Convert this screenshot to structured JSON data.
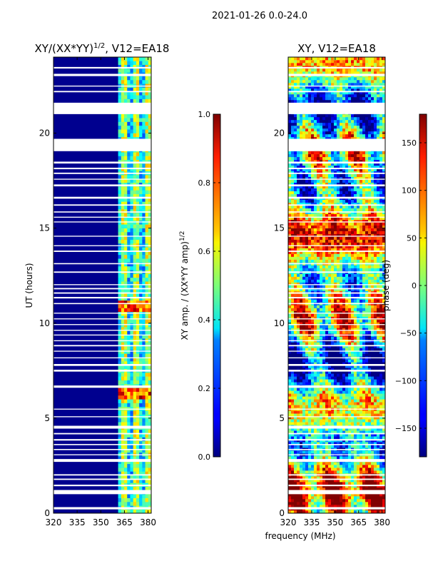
{
  "figure": {
    "suptitle": "2021-01-26 0.0-24.0",
    "xlabel": "frequency (MHz)"
  },
  "chart_data": [
    {
      "type": "heatmap",
      "title_main": "XY/(XX*YY)",
      "title_sup": "1/2",
      "title_rest": ", V12=EA18",
      "xlabel": "",
      "ylabel": "UT (hours)",
      "xlim": [
        320,
        382
      ],
      "ylim": [
        0,
        24
      ],
      "xticks": [
        "320",
        "335",
        "350",
        "365",
        "380"
      ],
      "xtick_values": [
        320,
        335,
        350,
        365,
        380
      ],
      "yticks": [
        "0",
        "5",
        "10",
        "15",
        "20"
      ],
      "ytick_values": [
        0,
        5,
        10,
        15,
        20
      ],
      "colormap": "jet",
      "colorbar": {
        "label_main": "XY amp. / (XX*YY amp)",
        "label_sup": "1/2",
        "range": [
          0.0,
          1.0
        ],
        "ticks": [
          "0.0",
          "0.2",
          "0.4",
          "0.6",
          "0.8",
          "1.0"
        ],
        "tick_values": [
          0.0,
          0.2,
          0.4,
          0.6,
          0.8,
          1.0
        ]
      },
      "bright_band_MHz": [
        361,
        382
      ],
      "high_amplitude_hours": [
        [
          10.6,
          11.2
        ],
        [
          6.0,
          6.6
        ]
      ]
    },
    {
      "type": "heatmap",
      "title": "XY, V12=EA18",
      "xlim": [
        320,
        382
      ],
      "ylim": [
        0,
        24
      ],
      "xticks": [
        "320",
        "335",
        "350",
        "365",
        "380"
      ],
      "xtick_values": [
        320,
        335,
        350,
        365,
        380
      ],
      "yticks": [
        "0",
        "5",
        "10",
        "15",
        "20"
      ],
      "ytick_values": [
        0,
        5,
        10,
        15,
        20
      ],
      "colormap": "jet",
      "colorbar": {
        "label": "phase (deg)",
        "range": [
          -180,
          180
        ],
        "ticks": [
          "−150",
          "−100",
          "−50",
          "0",
          "50",
          "100",
          "150"
        ],
        "tick_values": [
          -150,
          -100,
          -50,
          0,
          50,
          100,
          150
        ]
      }
    }
  ],
  "flagged_hours": [
    [
      0.2,
      0.32
    ],
    [
      1.0,
      1.22
    ],
    [
      1.42,
      1.5
    ],
    [
      1.75,
      1.82
    ],
    [
      1.98,
      2.05
    ],
    [
      2.7,
      2.85
    ],
    [
      3.05,
      3.1
    ],
    [
      3.32,
      3.38
    ],
    [
      3.58,
      3.64
    ],
    [
      3.82,
      3.9
    ],
    [
      4.15,
      4.22
    ],
    [
      4.45,
      4.6
    ],
    [
      5.05,
      5.1
    ],
    [
      5.45,
      5.5
    ],
    [
      6.6,
      6.72
    ],
    [
      7.45,
      7.55
    ],
    [
      7.75,
      7.85
    ],
    [
      8.15,
      8.2
    ],
    [
      8.5,
      8.55
    ],
    [
      8.78,
      8.85
    ],
    [
      9.05,
      9.1
    ],
    [
      9.35,
      9.4
    ],
    [
      9.6,
      9.65
    ],
    [
      9.9,
      9.95
    ],
    [
      10.2,
      10.25
    ],
    [
      10.5,
      10.55
    ],
    [
      11.0,
      11.06
    ],
    [
      11.3,
      11.38
    ],
    [
      11.55,
      11.62
    ],
    [
      11.78,
      11.85
    ],
    [
      12.0,
      12.05
    ],
    [
      12.65,
      12.72
    ],
    [
      13.1,
      13.16
    ],
    [
      13.75,
      13.82
    ],
    [
      14.05,
      14.1
    ],
    [
      14.55,
      14.6
    ],
    [
      15.3,
      15.35
    ],
    [
      15.55,
      15.6
    ],
    [
      15.82,
      15.88
    ],
    [
      16.18,
      16.25
    ],
    [
      16.55,
      16.65
    ],
    [
      17.2,
      17.3
    ],
    [
      17.55,
      17.6
    ],
    [
      17.85,
      17.92
    ],
    [
      18.1,
      18.18
    ],
    [
      18.4,
      18.5
    ],
    [
      19.05,
      19.7
    ],
    [
      21.0,
      21.6
    ],
    [
      22.15,
      22.22
    ],
    [
      22.45,
      22.5
    ],
    [
      23.0,
      23.12
    ],
    [
      23.4,
      23.48
    ]
  ]
}
